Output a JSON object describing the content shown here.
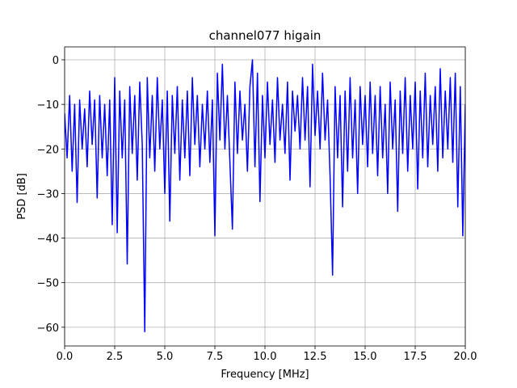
{
  "chart_data": {
    "type": "line",
    "title": "channel077 higain",
    "xlabel": "Frequency [MHz]",
    "ylabel": "PSD [dB]",
    "color": "#0000ff",
    "grid": true,
    "xlim": [
      0,
      20
    ],
    "ylim": [
      -64.2,
      2.9
    ],
    "xticks": [
      {
        "value": 0,
        "label": "0.0"
      },
      {
        "value": 2.5,
        "label": "2.5"
      },
      {
        "value": 5,
        "label": "5.0"
      },
      {
        "value": 7.5,
        "label": "7.5"
      },
      {
        "value": 10,
        "label": "10.0"
      },
      {
        "value": 12.5,
        "label": "12.5"
      },
      {
        "value": 15,
        "label": "15.0"
      },
      {
        "value": 17.5,
        "label": "17.5"
      },
      {
        "value": 20,
        "label": "20.0"
      }
    ],
    "yticks": [
      {
        "value": -60,
        "label": "−60"
      },
      {
        "value": -50,
        "label": "−50"
      },
      {
        "value": -40,
        "label": "−40"
      },
      {
        "value": -30,
        "label": "−30"
      },
      {
        "value": -20,
        "label": "−20"
      },
      {
        "value": -10,
        "label": "−10"
      },
      0
    ],
    "x": [
      0,
      0.125,
      0.25,
      0.375,
      0.5,
      0.625,
      0.75,
      0.875,
      1,
      1.125,
      1.25,
      1.375,
      1.5,
      1.625,
      1.75,
      1.875,
      2,
      2.125,
      2.25,
      2.375,
      2.5,
      2.625,
      2.75,
      2.875,
      3,
      3.125,
      3.25,
      3.375,
      3.5,
      3.625,
      3.75,
      3.875,
      4,
      4.125,
      4.25,
      4.375,
      4.5,
      4.625,
      4.75,
      4.875,
      5,
      5.125,
      5.25,
      5.375,
      5.5,
      5.625,
      5.75,
      5.875,
      6,
      6.125,
      6.25,
      6.375,
      6.5,
      6.625,
      6.75,
      6.875,
      7,
      7.125,
      7.25,
      7.375,
      7.5,
      7.625,
      7.75,
      7.875,
      8,
      8.125,
      8.25,
      8.375,
      8.5,
      8.625,
      8.75,
      8.875,
      9,
      9.125,
      9.25,
      9.375,
      9.5,
      9.625,
      9.75,
      9.875,
      10,
      10.125,
      10.25,
      10.375,
      10.5,
      10.625,
      10.75,
      10.875,
      11,
      11.125,
      11.25,
      11.375,
      11.5,
      11.625,
      11.75,
      11.875,
      12,
      12.125,
      12.25,
      12.375,
      12.5,
      12.625,
      12.75,
      12.875,
      13,
      13.125,
      13.25,
      13.375,
      13.5,
      13.625,
      13.75,
      13.875,
      14,
      14.125,
      14.25,
      14.375,
      14.5,
      14.625,
      14.75,
      14.875,
      15,
      15.125,
      15.25,
      15.375,
      15.5,
      15.625,
      15.75,
      15.875,
      16,
      16.125,
      16.25,
      16.375,
      16.5,
      16.625,
      16.75,
      16.875,
      17,
      17.125,
      17.25,
      17.375,
      17.5,
      17.625,
      17.75,
      17.875,
      18,
      18.125,
      18.25,
      18.375,
      18.5,
      18.625,
      18.75,
      18.875,
      19,
      19.125,
      19.25,
      19.375,
      19.5,
      19.625,
      19.75,
      19.875,
      20
    ],
    "values": [
      -12,
      -22,
      -8,
      -25,
      -10,
      -32,
      -9,
      -20,
      -11,
      -24,
      -7,
      -19,
      -9,
      -31,
      -8,
      -22,
      -10,
      -26,
      -9,
      -37,
      -4,
      -38.8,
      -7,
      -22,
      -9,
      -45.8,
      -6,
      -21,
      -8,
      -27,
      -5,
      -19,
      -61,
      -4,
      -22,
      -8,
      -25,
      -4,
      -20,
      -9,
      -30,
      -7,
      -36.2,
      -8,
      -21,
      -6,
      -27,
      -9,
      -22,
      -7,
      -26,
      -4,
      -19,
      -8,
      -24,
      -10,
      -20,
      -7,
      -23,
      -9,
      -39.5,
      -3,
      -18,
      -1,
      -20,
      -8,
      -23,
      -38,
      -5,
      -21,
      -7,
      -18,
      -10,
      -25,
      -6,
      0,
      -24,
      -3,
      -31.8,
      -8,
      -22,
      -5,
      -19,
      -9,
      -23,
      -4,
      -18,
      -10,
      -21,
      -5,
      -27,
      -7,
      -16,
      -8,
      -20,
      -4,
      -18,
      -6,
      -28.5,
      -1,
      -17,
      -7,
      -20,
      -3,
      -18,
      -9,
      -26,
      -48.3,
      -6,
      -22,
      -8,
      -33,
      -7,
      -25,
      -4,
      -22,
      -9,
      -30,
      -6,
      -19,
      -8,
      -24,
      -5,
      -21,
      -8,
      -26,
      -6,
      -22,
      -10,
      -30,
      -5,
      -20,
      -9,
      -34,
      -7,
      -21,
      -4,
      -25,
      -8,
      -20,
      -5,
      -29,
      -7,
      -22,
      -3,
      -24,
      -8,
      -19,
      -6,
      -25,
      -2,
      -22,
      -7,
      -20,
      -4,
      -23,
      -3,
      -33,
      -6,
      -39.5,
      -10
    ]
  }
}
